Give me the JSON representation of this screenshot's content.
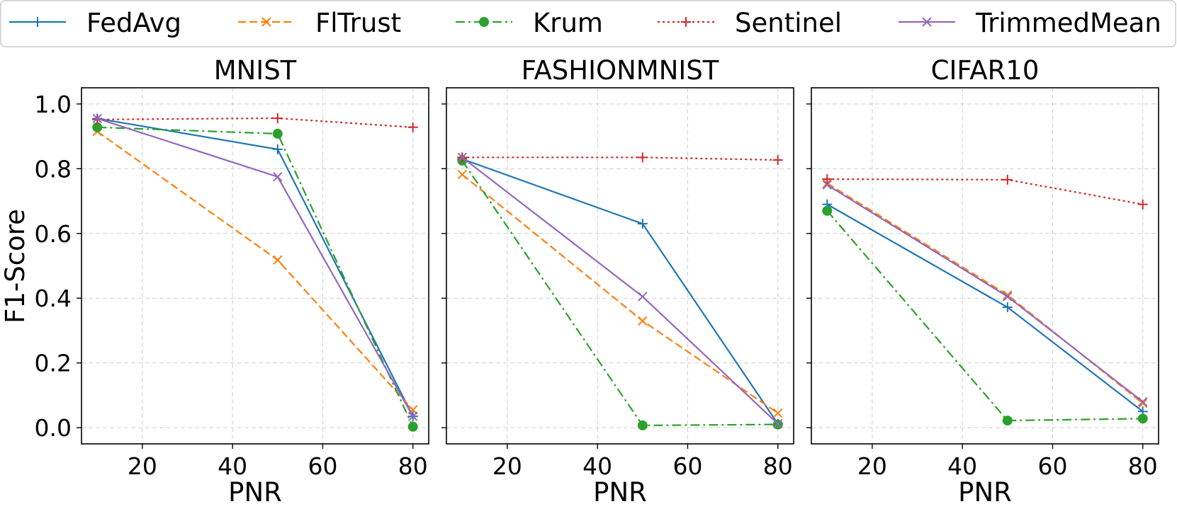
{
  "chart_data": {
    "type": "line",
    "legend": {
      "placement": "top",
      "entries": [
        {
          "name": "FedAvg",
          "color": "#1f77b4",
          "marker": "plus",
          "linestyle": "solid"
        },
        {
          "name": "FlTrust",
          "color": "#ff7f0e",
          "marker": "x",
          "linestyle": "dashed"
        },
        {
          "name": "Krum",
          "color": "#2ca02c",
          "marker": "circle",
          "linestyle": "dashdot"
        },
        {
          "name": "Sentinel",
          "color": "#d62728",
          "marker": "plus",
          "linestyle": "dotted"
        },
        {
          "name": "TrimmedMean",
          "color": "#9467bd",
          "marker": "x",
          "linestyle": "solid"
        }
      ]
    },
    "ylabel": "F1-Score",
    "xlabel": "PNR",
    "xlim": [
      6.5,
      83.5
    ],
    "ylim": [
      -0.05,
      1.05
    ],
    "xticks": [
      20,
      40,
      60,
      80
    ],
    "yticks": [
      0.0,
      0.2,
      0.4,
      0.6,
      0.8,
      1.0
    ],
    "grid": true,
    "x": [
      10,
      50,
      80
    ],
    "panels": [
      {
        "title": "MNIST",
        "series": [
          {
            "name": "FedAvg",
            "values": [
              0.955,
              0.86,
              0.035
            ]
          },
          {
            "name": "FlTrust",
            "values": [
              0.915,
              0.518,
              0.055
            ]
          },
          {
            "name": "Krum",
            "values": [
              0.928,
              0.908,
              0.003
            ]
          },
          {
            "name": "Sentinel",
            "values": [
              0.952,
              0.956,
              0.928
            ]
          },
          {
            "name": "TrimmedMean",
            "values": [
              0.955,
              0.775,
              0.035
            ]
          }
        ]
      },
      {
        "title": "FASHIONMNIST",
        "series": [
          {
            "name": "FedAvg",
            "values": [
              0.83,
              0.63,
              0.012
            ]
          },
          {
            "name": "FlTrust",
            "values": [
              0.782,
              0.33,
              0.045
            ]
          },
          {
            "name": "Krum",
            "values": [
              0.825,
              0.007,
              0.01
            ]
          },
          {
            "name": "Sentinel",
            "values": [
              0.835,
              0.835,
              0.827
            ]
          },
          {
            "name": "TrimmedMean",
            "values": [
              0.835,
              0.405,
              0.012
            ]
          }
        ]
      },
      {
        "title": "CIFAR10",
        "series": [
          {
            "name": "FedAvg",
            "values": [
              0.69,
              0.372,
              0.05
            ]
          },
          {
            "name": "FlTrust",
            "values": [
              0.755,
              0.41,
              0.075
            ]
          },
          {
            "name": "Krum",
            "values": [
              0.67,
              0.022,
              0.028
            ]
          },
          {
            "name": "Sentinel",
            "values": [
              0.768,
              0.766,
              0.69
            ]
          },
          {
            "name": "TrimmedMean",
            "values": [
              0.75,
              0.405,
              0.08
            ]
          }
        ]
      }
    ]
  }
}
